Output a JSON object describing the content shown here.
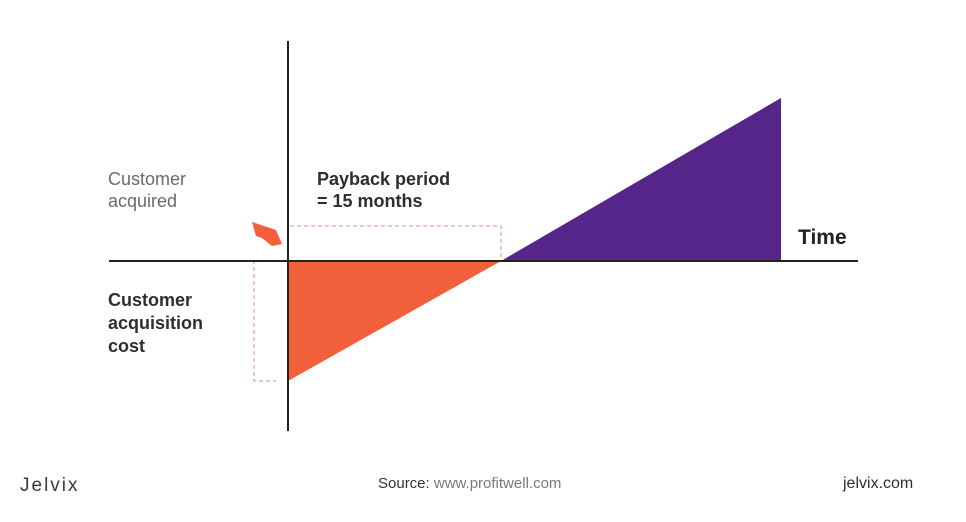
{
  "labels": {
    "customer_acquired": [
      "Customer",
      "acquired"
    ],
    "acquisition_cost": [
      "Customer",
      "acquisition",
      "cost"
    ],
    "payback": [
      "Payback period",
      "= 15 months"
    ],
    "time_axis": "Time"
  },
  "footer": {
    "brand": "Jelvix",
    "source_label": "Source:",
    "source_url": "www.profitwell.com",
    "site": "jelvix.com"
  },
  "colors": {
    "cost_area": "#F2603B",
    "revenue_area": "#55258A",
    "axis": "#222222",
    "guide_dashed": "#E8A6A6",
    "arrow": "#F2603B"
  }
}
